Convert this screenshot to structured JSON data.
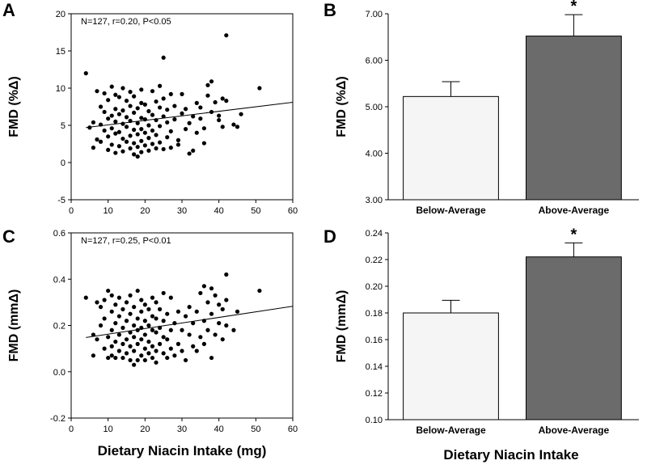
{
  "figure": {
    "bottom_left_title": "Dietary Niacin Intake (mg)",
    "bottom_right_title": "Dietary Niacin Intake"
  },
  "chart_data": [
    {
      "panel": "A",
      "type": "scatter",
      "title": "",
      "annotation": "N=127, r=0.20, P<0.05",
      "xlabel": "",
      "ylabel": "FMD (%Δ)",
      "xlim": [
        0,
        60
      ],
      "ylim": [
        -5,
        20
      ],
      "xticks": [
        0,
        10,
        20,
        30,
        40,
        50,
        60
      ],
      "yticks": [
        -5,
        0,
        5,
        10,
        15,
        20
      ],
      "regression_line": {
        "x": [
          4,
          60
        ],
        "y": [
          4.7,
          8.1
        ]
      },
      "points": [
        [
          4,
          12.0
        ],
        [
          5,
          4.7
        ],
        [
          6,
          2.0
        ],
        [
          6,
          5.4
        ],
        [
          7,
          3.1
        ],
        [
          7,
          9.6
        ],
        [
          8,
          2.8
        ],
        [
          8,
          5.1
        ],
        [
          8,
          7.5
        ],
        [
          9,
          4.3
        ],
        [
          9,
          6.8
        ],
        [
          9,
          9.3
        ],
        [
          10,
          1.7
        ],
        [
          10,
          3.5
        ],
        [
          10,
          5.9
        ],
        [
          10,
          8.4
        ],
        [
          11,
          2.4
        ],
        [
          11,
          4.6
        ],
        [
          11,
          6.3
        ],
        [
          11,
          10.2
        ],
        [
          12,
          1.3
        ],
        [
          12,
          3.9
        ],
        [
          12,
          5.5
        ],
        [
          12,
          7.2
        ],
        [
          12,
          9.1
        ],
        [
          13,
          2.2
        ],
        [
          13,
          4.1
        ],
        [
          13,
          6.5
        ],
        [
          13,
          8.8
        ],
        [
          14,
          1.5
        ],
        [
          14,
          3.2
        ],
        [
          14,
          5.2
        ],
        [
          14,
          7.0
        ],
        [
          14,
          10.0
        ],
        [
          15,
          2.8
        ],
        [
          15,
          4.8
        ],
        [
          15,
          6.1
        ],
        [
          15,
          8.3
        ],
        [
          16,
          1.9
        ],
        [
          16,
          3.6
        ],
        [
          16,
          5.6
        ],
        [
          16,
          7.6
        ],
        [
          16,
          9.5
        ],
        [
          17,
          1.1
        ],
        [
          17,
          2.6
        ],
        [
          17,
          4.4
        ],
        [
          17,
          6.7
        ],
        [
          17,
          8.9
        ],
        [
          18,
          0.8
        ],
        [
          18,
          2.1
        ],
        [
          18,
          3.8
        ],
        [
          18,
          5.3
        ],
        [
          18,
          7.3
        ],
        [
          19,
          1.4
        ],
        [
          19,
          2.9
        ],
        [
          19,
          4.5
        ],
        [
          19,
          6.0
        ],
        [
          19,
          8.0
        ],
        [
          19,
          9.8
        ],
        [
          20,
          2.3
        ],
        [
          20,
          4.0
        ],
        [
          20,
          5.8
        ],
        [
          20,
          7.8
        ],
        [
          21,
          1.6
        ],
        [
          21,
          3.3
        ],
        [
          21,
          5.0
        ],
        [
          21,
          6.9
        ],
        [
          22,
          2.5
        ],
        [
          22,
          4.3
        ],
        [
          22,
          6.4
        ],
        [
          22,
          9.6
        ],
        [
          23,
          1.9
        ],
        [
          23,
          3.7
        ],
        [
          23,
          5.7
        ],
        [
          23,
          8.2
        ],
        [
          24,
          2.7
        ],
        [
          24,
          4.9
        ],
        [
          24,
          7.4
        ],
        [
          24,
          10.3
        ],
        [
          25,
          1.8
        ],
        [
          25,
          14.1
        ],
        [
          25,
          6.2
        ],
        [
          25,
          8.6
        ],
        [
          26,
          3.4
        ],
        [
          26,
          5.4
        ],
        [
          26,
          7.1
        ],
        [
          27,
          2.0
        ],
        [
          27,
          4.2
        ],
        [
          27,
          9.2
        ],
        [
          28,
          5.8
        ],
        [
          28,
          7.6
        ],
        [
          29,
          2.4
        ],
        [
          29,
          3.0
        ],
        [
          30,
          6.6
        ],
        [
          30,
          9.2
        ],
        [
          31,
          4.5
        ],
        [
          31,
          7.2
        ],
        [
          32,
          1.2
        ],
        [
          32,
          5.3
        ],
        [
          33,
          1.6
        ],
        [
          33,
          6.2
        ],
        [
          34,
          8.0
        ],
        [
          34,
          4.0
        ],
        [
          35,
          5.9
        ],
        [
          35,
          7.4
        ],
        [
          36,
          2.6
        ],
        [
          36,
          4.6
        ],
        [
          37,
          9.0
        ],
        [
          37,
          10.4
        ],
        [
          38,
          10.9
        ],
        [
          38,
          6.8
        ],
        [
          39,
          8.1
        ],
        [
          40,
          5.7
        ],
        [
          40,
          6.3
        ],
        [
          41,
          4.8
        ],
        [
          41,
          8.6
        ],
        [
          42,
          8.3
        ],
        [
          42,
          17.1
        ],
        [
          44,
          5.1
        ],
        [
          45,
          4.8
        ],
        [
          46,
          6.5
        ],
        [
          51,
          10.0
        ]
      ]
    },
    {
      "panel": "B",
      "type": "bar",
      "title": "",
      "xlabel": "",
      "ylabel": "FMD (%Δ)",
      "categories": [
        "Below-Average",
        "Above-Average"
      ],
      "values": [
        5.22,
        6.52
      ],
      "errors": [
        0.32,
        0.46
      ],
      "colors": [
        "#f5f5f5",
        "#6b6b6b"
      ],
      "significance": [
        "",
        "*"
      ],
      "ylim": [
        3.0,
        7.0
      ],
      "yticks": [
        "3.00",
        "4.00",
        "5.00",
        "6.00",
        "7.00"
      ]
    },
    {
      "panel": "C",
      "type": "scatter",
      "title": "",
      "annotation": "N=127, r=0.25, P<0.01",
      "xlabel": "Dietary Niacin Intake (mg)",
      "ylabel": "FMD (mmΔ)",
      "xlim": [
        0,
        60
      ],
      "ylim": [
        -0.2,
        0.6
      ],
      "xticks": [
        0,
        10,
        20,
        30,
        40,
        50,
        60
      ],
      "yticks": [
        "-0.2",
        "0.0",
        "0.2",
        "0.4",
        "0.6"
      ],
      "regression_line": {
        "x": [
          4,
          60
        ],
        "y": [
          0.148,
          0.283
        ]
      },
      "points": [
        [
          4,
          0.32
        ],
        [
          6,
          0.07
        ],
        [
          6,
          0.16
        ],
        [
          7,
          0.14
        ],
        [
          7,
          0.3
        ],
        [
          8,
          0.2
        ],
        [
          8,
          0.28
        ],
        [
          9,
          0.1
        ],
        [
          9,
          0.23
        ],
        [
          9,
          0.31
        ],
        [
          10,
          0.06
        ],
        [
          10,
          0.15
        ],
        [
          10,
          0.35
        ],
        [
          11,
          0.07
        ],
        [
          11,
          0.11
        ],
        [
          11,
          0.18
        ],
        [
          11,
          0.26
        ],
        [
          11,
          0.33
        ],
        [
          12,
          0.06
        ],
        [
          12,
          0.13
        ],
        [
          12,
          0.21
        ],
        [
          12,
          0.29
        ],
        [
          13,
          0.09
        ],
        [
          13,
          0.16
        ],
        [
          13,
          0.24
        ],
        [
          13,
          0.32
        ],
        [
          14,
          0.06
        ],
        [
          14,
          0.12
        ],
        [
          14,
          0.19
        ],
        [
          14,
          0.27
        ],
        [
          15,
          0.08
        ],
        [
          15,
          0.14
        ],
        [
          15,
          0.22
        ],
        [
          15,
          0.3
        ],
        [
          16,
          0.05
        ],
        [
          16,
          0.11
        ],
        [
          16,
          0.17
        ],
        [
          16,
          0.25
        ],
        [
          16,
          0.33
        ],
        [
          17,
          0.03
        ],
        [
          17,
          0.09
        ],
        [
          17,
          0.15
        ],
        [
          17,
          0.2
        ],
        [
          17,
          0.28
        ],
        [
          18,
          0.05
        ],
        [
          18,
          0.12
        ],
        [
          18,
          0.18
        ],
        [
          18,
          0.23
        ],
        [
          18,
          0.35
        ],
        [
          19,
          0.07
        ],
        [
          19,
          0.14
        ],
        [
          19,
          0.19
        ],
        [
          19,
          0.26
        ],
        [
          19,
          0.31
        ],
        [
          20,
          0.05
        ],
        [
          20,
          0.1
        ],
        [
          20,
          0.16
        ],
        [
          20,
          0.22
        ],
        [
          20,
          0.29
        ],
        [
          21,
          0.08
        ],
        [
          21,
          0.13
        ],
        [
          21,
          0.2
        ],
        [
          21,
          0.27
        ],
        [
          22,
          0.06
        ],
        [
          22,
          0.11
        ],
        [
          22,
          0.18
        ],
        [
          22,
          0.24
        ],
        [
          22,
          0.32
        ],
        [
          23,
          0.04
        ],
        [
          23,
          0.09
        ],
        [
          23,
          0.17
        ],
        [
          23,
          0.23
        ],
        [
          23,
          0.3
        ],
        [
          24,
          0.12
        ],
        [
          24,
          0.19
        ],
        [
          24,
          0.27
        ],
        [
          25,
          0.08
        ],
        [
          25,
          0.15
        ],
        [
          25,
          0.22
        ],
        [
          25,
          0.34
        ],
        [
          26,
          0.06
        ],
        [
          26,
          0.14
        ],
        [
          26,
          0.25
        ],
        [
          27,
          0.1
        ],
        [
          27,
          0.18
        ],
        [
          27,
          0.32
        ],
        [
          28,
          0.07
        ],
        [
          28,
          0.21
        ],
        [
          29,
          0.12
        ],
        [
          29,
          0.26
        ],
        [
          30,
          0.09
        ],
        [
          30,
          0.18
        ],
        [
          31,
          0.05
        ],
        [
          31,
          0.24
        ],
        [
          32,
          0.16
        ],
        [
          32,
          0.28
        ],
        [
          33,
          0.11
        ],
        [
          33,
          0.21
        ],
        [
          34,
          0.09
        ],
        [
          34,
          0.26
        ],
        [
          35,
          0.15
        ],
        [
          35,
          0.34
        ],
        [
          36,
          0.12
        ],
        [
          36,
          0.22
        ],
        [
          36,
          0.37
        ],
        [
          37,
          0.18
        ],
        [
          37,
          0.3
        ],
        [
          38,
          0.06
        ],
        [
          38,
          0.25
        ],
        [
          38,
          0.36
        ],
        [
          39,
          0.16
        ],
        [
          39,
          0.33
        ],
        [
          40,
          0.21
        ],
        [
          40,
          0.29
        ],
        [
          41,
          0.14
        ],
        [
          41,
          0.27
        ],
        [
          42,
          0.2
        ],
        [
          42,
          0.31
        ],
        [
          42,
          0.42
        ],
        [
          44,
          0.18
        ],
        [
          45,
          0.26
        ],
        [
          51,
          0.35
        ]
      ]
    },
    {
      "panel": "D",
      "type": "bar",
      "title": "",
      "xlabel": "Dietary Niacin Intake",
      "ylabel": "FMD (mmΔ)",
      "categories": [
        "Below-Average",
        "Above-Average"
      ],
      "values": [
        0.18,
        0.222
      ],
      "errors": [
        0.0095,
        0.0105
      ],
      "colors": [
        "#f5f5f5",
        "#6b6b6b"
      ],
      "significance": [
        "",
        "*"
      ],
      "ylim": [
        0.1,
        0.24
      ],
      "yticks": [
        "0.10",
        "0.12",
        "0.14",
        "0.16",
        "0.18",
        "0.20",
        "0.22",
        "0.24"
      ]
    }
  ]
}
